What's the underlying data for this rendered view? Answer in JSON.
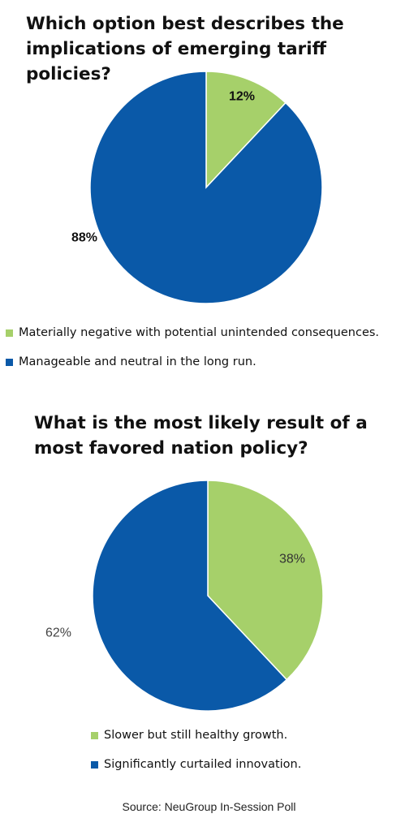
{
  "colors": {
    "green": "#a6d06a",
    "blue": "#0a59a8"
  },
  "chart_data": [
    {
      "type": "pie",
      "title": "Which option best describes the implications of emerging tariff policies?",
      "slices": [
        {
          "label": "Materially negative with potential unintended consequences.",
          "value": 12,
          "display": "12%",
          "color": "#a6d06a"
        },
        {
          "label": "Manageable and neutral in the long run.",
          "value": 88,
          "display": "88%",
          "color": "#0a59a8"
        }
      ],
      "legend_position": "bottom-left"
    },
    {
      "type": "pie",
      "title": "What is the most likely result of a most favored nation policy?",
      "slices": [
        {
          "label": "Slower but still healthy growth.",
          "value": 38,
          "display": "38%",
          "color": "#a6d06a"
        },
        {
          "label": "Significantly curtailed innovation.",
          "value": 62,
          "display": "62%",
          "color": "#0a59a8"
        }
      ],
      "legend_position": "bottom"
    }
  ],
  "source": "Source: NeuGroup In-Session Poll"
}
